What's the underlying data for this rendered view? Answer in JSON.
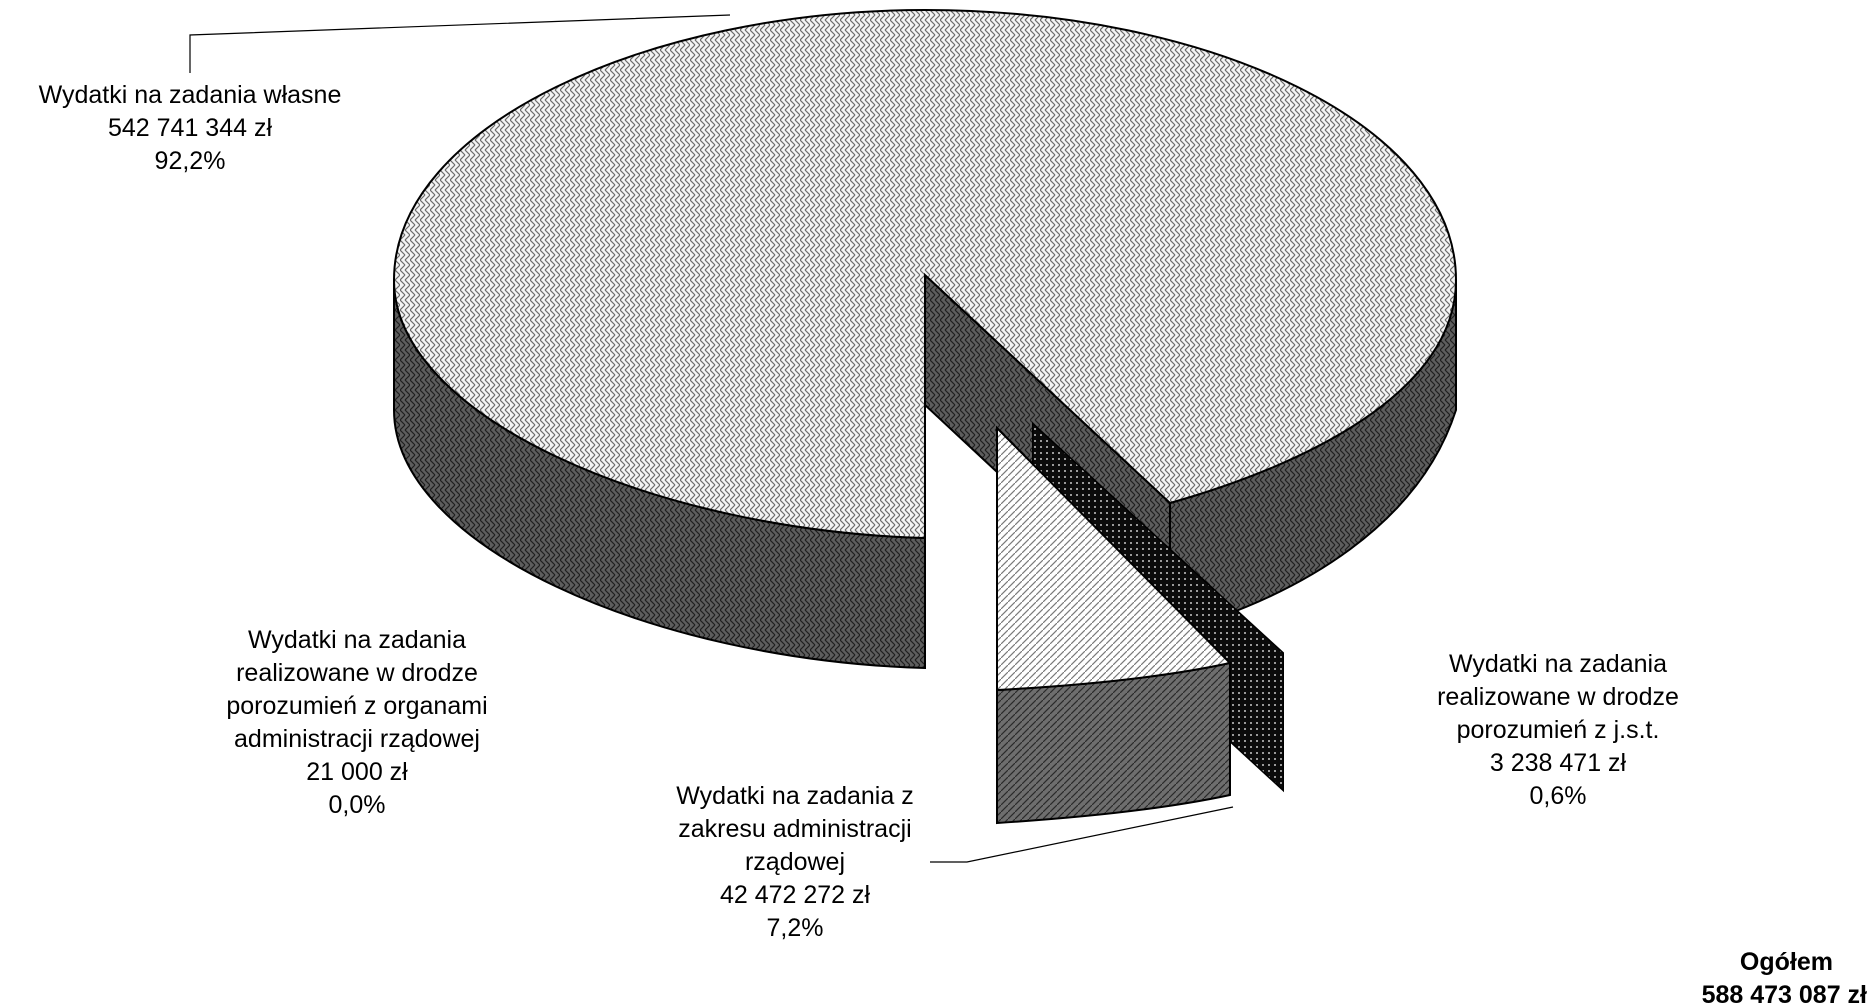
{
  "chart_data": {
    "type": "pie",
    "style": "3d-exploded",
    "slices": [
      {
        "key": "wlasne",
        "label_lines": [
          "Wydatki na zadania własne"
        ],
        "amount": "542 741 344 zł",
        "value": 542741344,
        "percent": "92,2%",
        "pattern": "weave-light"
      },
      {
        "key": "jst",
        "label_lines": [
          "Wydatki na zadania",
          "realizowane w drodze",
          "porozumień z j.s.t."
        ],
        "amount": "3 238 471 zł",
        "value": 3238471,
        "percent": "0,6%",
        "pattern": "dots-black"
      },
      {
        "key": "admin",
        "label_lines": [
          "Wydatki na zadania z",
          "zakresu administracji",
          "rządowej"
        ],
        "amount": "42 472 272 zł",
        "value": 42472272,
        "percent": "7,2%",
        "pattern": "diagonal-light"
      },
      {
        "key": "porozumienia_admin",
        "label_lines": [
          "Wydatki na zadania",
          "realizowane w drodze",
          "porozumień z organami",
          "administracji rządowej"
        ],
        "amount": "21 000 zł",
        "value": 21000,
        "percent": "0,0%",
        "pattern": "none"
      }
    ],
    "total": {
      "label": "Ogółem",
      "amount": "588 473 087 zł"
    }
  }
}
